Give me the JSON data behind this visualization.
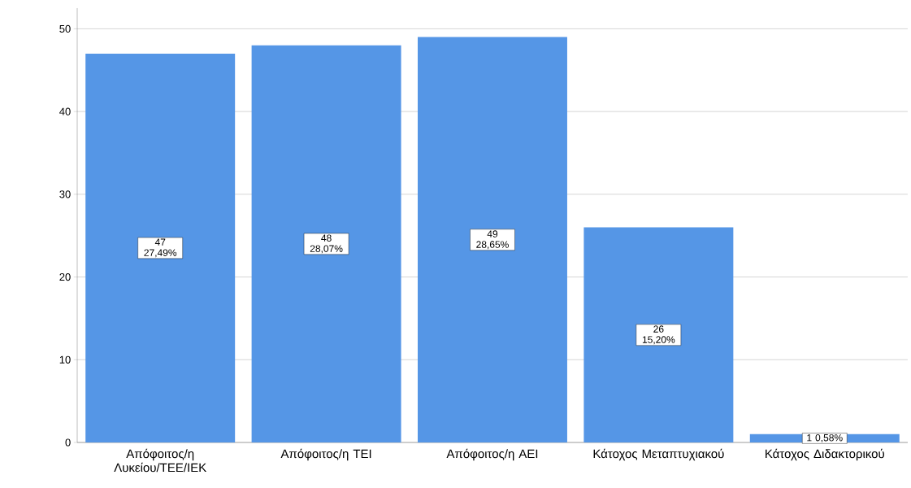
{
  "chart_data": {
    "type": "bar",
    "categories": [
      "Απόφοιτος/η Λυκείου/ΤΕΕ/ΙΕΚ",
      "Απόφοιτος/η ΤΕΙ",
      "Απόφοιτος/η ΑΕΙ",
      "Κάτοχος Μεταπτυχιακού",
      "Κάτοχος Διδακτορικού"
    ],
    "values": [
      47,
      48,
      49,
      26,
      1
    ],
    "value_labels": [
      "47 27,49%",
      "48 28,07%",
      "49 28,65%",
      "26 15,20%",
      "1 0,58%"
    ],
    "color": "#5596e6",
    "ylim": [
      0,
      52.5
    ],
    "yticks": [
      0,
      10,
      20,
      30,
      40,
      50
    ],
    "grid": "y"
  }
}
